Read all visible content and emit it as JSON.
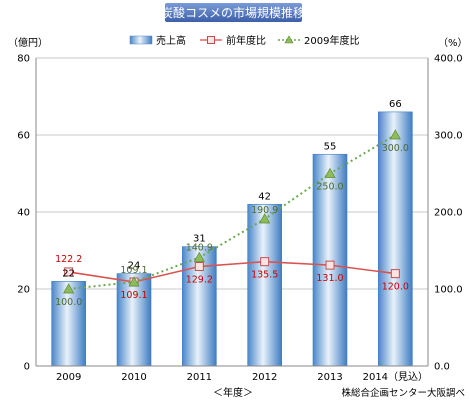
{
  "chart_data": {
    "type": "bar",
    "title": "炭酸コスメの市場規模推移",
    "categories": [
      "2009",
      "2010",
      "2011",
      "2012",
      "2013",
      "2014（見込）"
    ],
    "series": [
      {
        "name": "売上高",
        "kind": "bar",
        "axis": "left",
        "color": "#5b9bd5",
        "values": [
          22,
          24,
          31,
          42,
          55,
          66
        ]
      },
      {
        "name": "前年度比",
        "kind": "line",
        "axis": "right",
        "color": "#e06666",
        "values": [
          122.2,
          109.1,
          129.2,
          135.5,
          131.0,
          120.0
        ],
        "labels": [
          "122.2",
          "109.1",
          "129.2",
          "135.5",
          "131.0",
          "120.0"
        ]
      },
      {
        "name": "2009年度比",
        "kind": "line",
        "axis": "right",
        "color": "#6aa84f",
        "values": [
          100.0,
          109.1,
          140.9,
          190.9,
          250.0,
          300.0
        ],
        "labels": [
          "100.0",
          "109.1",
          "140.9",
          "190.9",
          "250.0",
          "300.0"
        ]
      }
    ],
    "left_axis": {
      "unit": "（億円）",
      "ylim": [
        0,
        80
      ],
      "ticks": [
        "0",
        "20",
        "40",
        "60",
        "80"
      ]
    },
    "right_axis": {
      "unit": "（%）",
      "ylim": [
        0,
        400
      ],
      "ticks": [
        "0.0",
        "100.0",
        "200.0",
        "300.0",
        "400.0"
      ]
    },
    "xlabel": "＜年度＞",
    "source": "株総合企画センター大阪調べ",
    "grid": true,
    "legend": "top"
  }
}
